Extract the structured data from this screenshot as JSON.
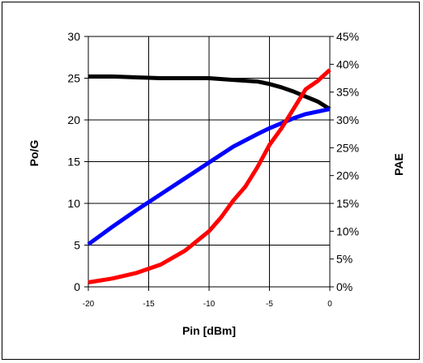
{
  "chart_data": {
    "type": "line",
    "xlabel": "Pin [dBm]",
    "ylabel_left": "Po/G",
    "ylabel_right": "PAE",
    "xlim": [
      -20,
      0
    ],
    "ylim_left": [
      0,
      30
    ],
    "ylim_right": [
      0,
      45
    ],
    "x_ticks": [
      "-20",
      "-15",
      "-10",
      "-5",
      "0"
    ],
    "y_left_ticks": [
      "0",
      "5",
      "10",
      "15",
      "20",
      "25",
      "30"
    ],
    "y_right_ticks": [
      "0%",
      "5%",
      "10%",
      "15%",
      "20%",
      "25%",
      "30%",
      "35%",
      "40%",
      "45%"
    ],
    "grid": true,
    "series": [
      {
        "axis": "left",
        "color": "#000000",
        "x": [
          -20,
          -18,
          -16,
          -14,
          -12,
          -10,
          -8,
          -6,
          -5,
          -4,
          -3,
          -2,
          -1,
          0
        ],
        "y": [
          25.2,
          25.2,
          25.1,
          25.0,
          25.0,
          25.0,
          24.8,
          24.6,
          24.3,
          23.9,
          23.4,
          22.8,
          22.2,
          21.3
        ]
      },
      {
        "axis": "left",
        "color": "#0000ff",
        "x": [
          -20,
          -18,
          -16,
          -14,
          -12,
          -10,
          -8,
          -6,
          -5,
          -4,
          -3,
          -2,
          -1,
          0
        ],
        "y": [
          5.1,
          7.2,
          9.2,
          11.1,
          13.0,
          14.9,
          16.8,
          18.3,
          19.0,
          19.6,
          20.2,
          20.7,
          21.0,
          21.3
        ]
      },
      {
        "axis": "right",
        "color": "#ff0000",
        "x": [
          -20,
          -18,
          -16,
          -14,
          -12,
          -10,
          -9,
          -8,
          -7,
          -6,
          -5,
          -4,
          -3,
          -2,
          -1,
          0
        ],
        "y": [
          0.8,
          1.5,
          2.5,
          4.0,
          6.5,
          10.0,
          12.5,
          15.5,
          18.0,
          21.5,
          25.5,
          28.5,
          32.0,
          35.5,
          37.0,
          39.0
        ]
      }
    ]
  }
}
